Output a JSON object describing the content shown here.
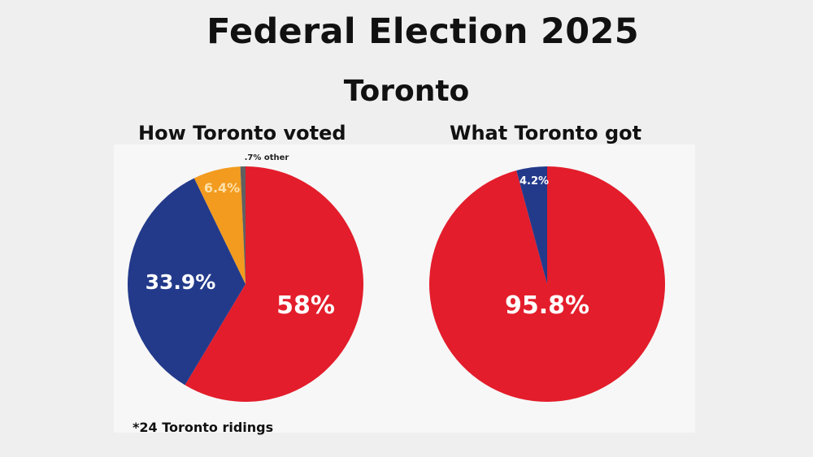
{
  "title": "Federal Election 2025",
  "subtitle": "Toronto",
  "footnote": "*24 Toronto ridings",
  "colors": {
    "red": "#e31d2b",
    "blue": "#233a8b",
    "orange": "#f29b1f",
    "gray": "#606060"
  },
  "chart_data": [
    {
      "type": "pie",
      "title": "How Toronto voted",
      "slices": [
        {
          "value": 58.0,
          "label": "58%",
          "color": "#e31d2b"
        },
        {
          "value": 33.9,
          "label": "33.9%",
          "color": "#233a8b"
        },
        {
          "value": 6.4,
          "label": "6.4%",
          "color": "#f29b1f"
        },
        {
          "value": 0.7,
          "label": ".7% other",
          "color": "#606060"
        }
      ]
    },
    {
      "type": "pie",
      "title": "What Toronto got",
      "slices": [
        {
          "value": 95.8,
          "label": "95.8%",
          "color": "#e31d2b"
        },
        {
          "value": 4.2,
          "label": "4.2%",
          "color": "#233a8b"
        }
      ]
    }
  ]
}
